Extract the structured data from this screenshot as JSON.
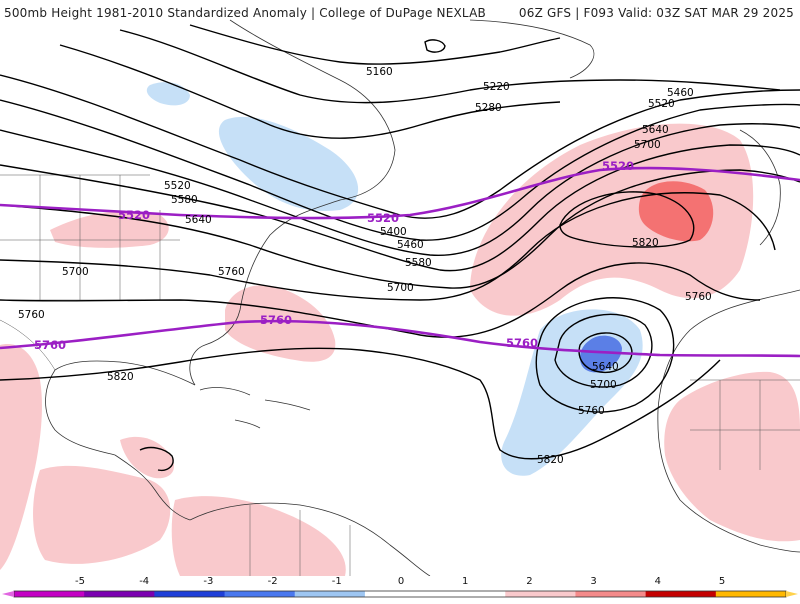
{
  "header": {
    "title": "500mb Height 1981-2010 Standardized Anomaly | College of DuPage NEXLAB",
    "run_info": "06Z GFS | F093 Valid: 03Z SAT MAR 29 2025"
  },
  "colors": {
    "ocean": "#ffffff",
    "coast": "#333333",
    "contour": "#000000",
    "highlight_contour": "#9b1fc4",
    "light_blue": "#c6e0f7",
    "mid_blue": "#5b7fe6",
    "light_red": "#f9c9cc",
    "mid_red": "#f47272"
  },
  "map_labels": {
    "contour_5160": "5160",
    "contour_5220": "5220",
    "contour_5280": "5280",
    "contour_5460_ne": "5460",
    "contour_5520_ne": "5520",
    "contour_5640_ne": "5640",
    "contour_5700_ne": "5700",
    "purple_5520_east": "5520",
    "purple_5520_mid": "5520",
    "purple_5520_west": "5520",
    "contour_5520_w": "5520",
    "contour_5580_w": "5580",
    "contour_5640_w": "5640",
    "contour_5400": "5400",
    "contour_5460_w": "5460",
    "contour_5580_mid": "5580",
    "contour_5700_mid": "5700",
    "contour_5820_ne": "5820",
    "contour_5760_ne": "5760",
    "contour_5700_w": "5700",
    "contour_5760_w": "5760",
    "contour_5760_sw": "5760",
    "purple_5760_w": "5760",
    "purple_5760_mid": "5760",
    "purple_5760_e": "5760",
    "contour_5820_w": "5820",
    "contour_5640_low": "5640",
    "contour_5700_low": "5700",
    "contour_5760_low": "5760",
    "contour_5820_low": "5820"
  },
  "colorbar": {
    "ticks": [
      "-5",
      "-4",
      "-3",
      "-2",
      "-1",
      "0",
      "1",
      "2",
      "3",
      "4",
      "5"
    ],
    "colors": [
      "#c400c4",
      "#7b00b0",
      "#1f3fd8",
      "#4a78ef",
      "#9ec6f2",
      "#ffffff",
      "#ffffff",
      "#f9c9cc",
      "#f48a8a",
      "#c40000",
      "#ffb800"
    ]
  }
}
